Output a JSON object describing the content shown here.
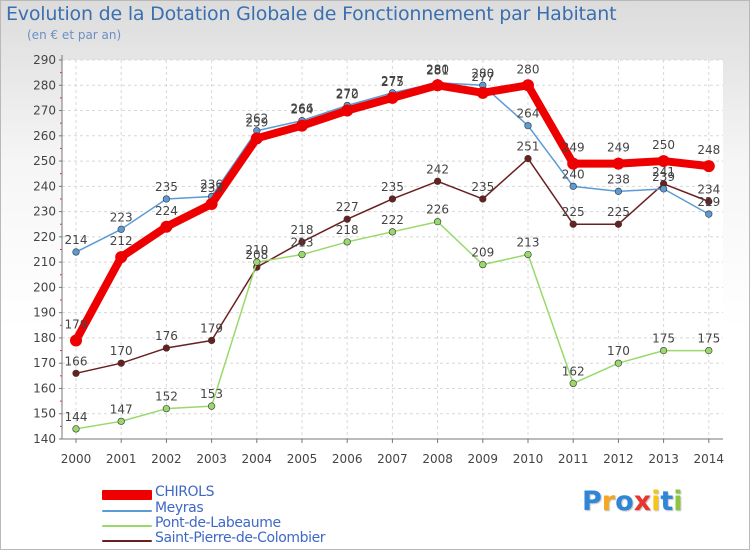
{
  "chart_data": {
    "type": "line",
    "title": "Evolution de la Dotation Globale de Fonctionnement par Habitant",
    "subtitle": "(en € et par an)",
    "x": [
      "2000",
      "2001",
      "2002",
      "2003",
      "2004",
      "2005",
      "2006",
      "2007",
      "2008",
      "2009",
      "2010",
      "2011",
      "2012",
      "2013",
      "2014"
    ],
    "ylim": [
      140,
      290
    ],
    "yticks": [
      140,
      150,
      160,
      170,
      180,
      190,
      200,
      210,
      220,
      230,
      240,
      250,
      260,
      270,
      280,
      290
    ],
    "grid": true,
    "legend_position": "bottom-left",
    "series": [
      {
        "name": "CHIROLS",
        "color": "#ee0000",
        "values": [
          179,
          212,
          224,
          233,
          259,
          264,
          270,
          275,
          280,
          277,
          280,
          249,
          249,
          250,
          248
        ]
      },
      {
        "name": "Meyras",
        "color": "#5b9bd5",
        "values": [
          214,
          223,
          235,
          236,
          262,
          266,
          272,
          277,
          281,
          280,
          264,
          240,
          238,
          239,
          229
        ]
      },
      {
        "name": "Pont-de-Labeaume",
        "color": "#99d96b",
        "values": [
          144,
          147,
          152,
          153,
          210,
          213,
          218,
          222,
          226,
          209,
          213,
          162,
          170,
          175,
          175
        ]
      },
      {
        "name": "Saint-Pierre-de-Colombier",
        "color": "#6b2020",
        "values": [
          166,
          170,
          176,
          179,
          208,
          218,
          227,
          235,
          242,
          235,
          251,
          225,
          225,
          241,
          234
        ]
      }
    ]
  },
  "logo": {
    "text": "Proxiti",
    "colors": [
      "#2f86d6",
      "#f5a623",
      "#2f86d6",
      "#e8352d",
      "#f5c518",
      "#2f86d6",
      "#8cc63f"
    ]
  }
}
